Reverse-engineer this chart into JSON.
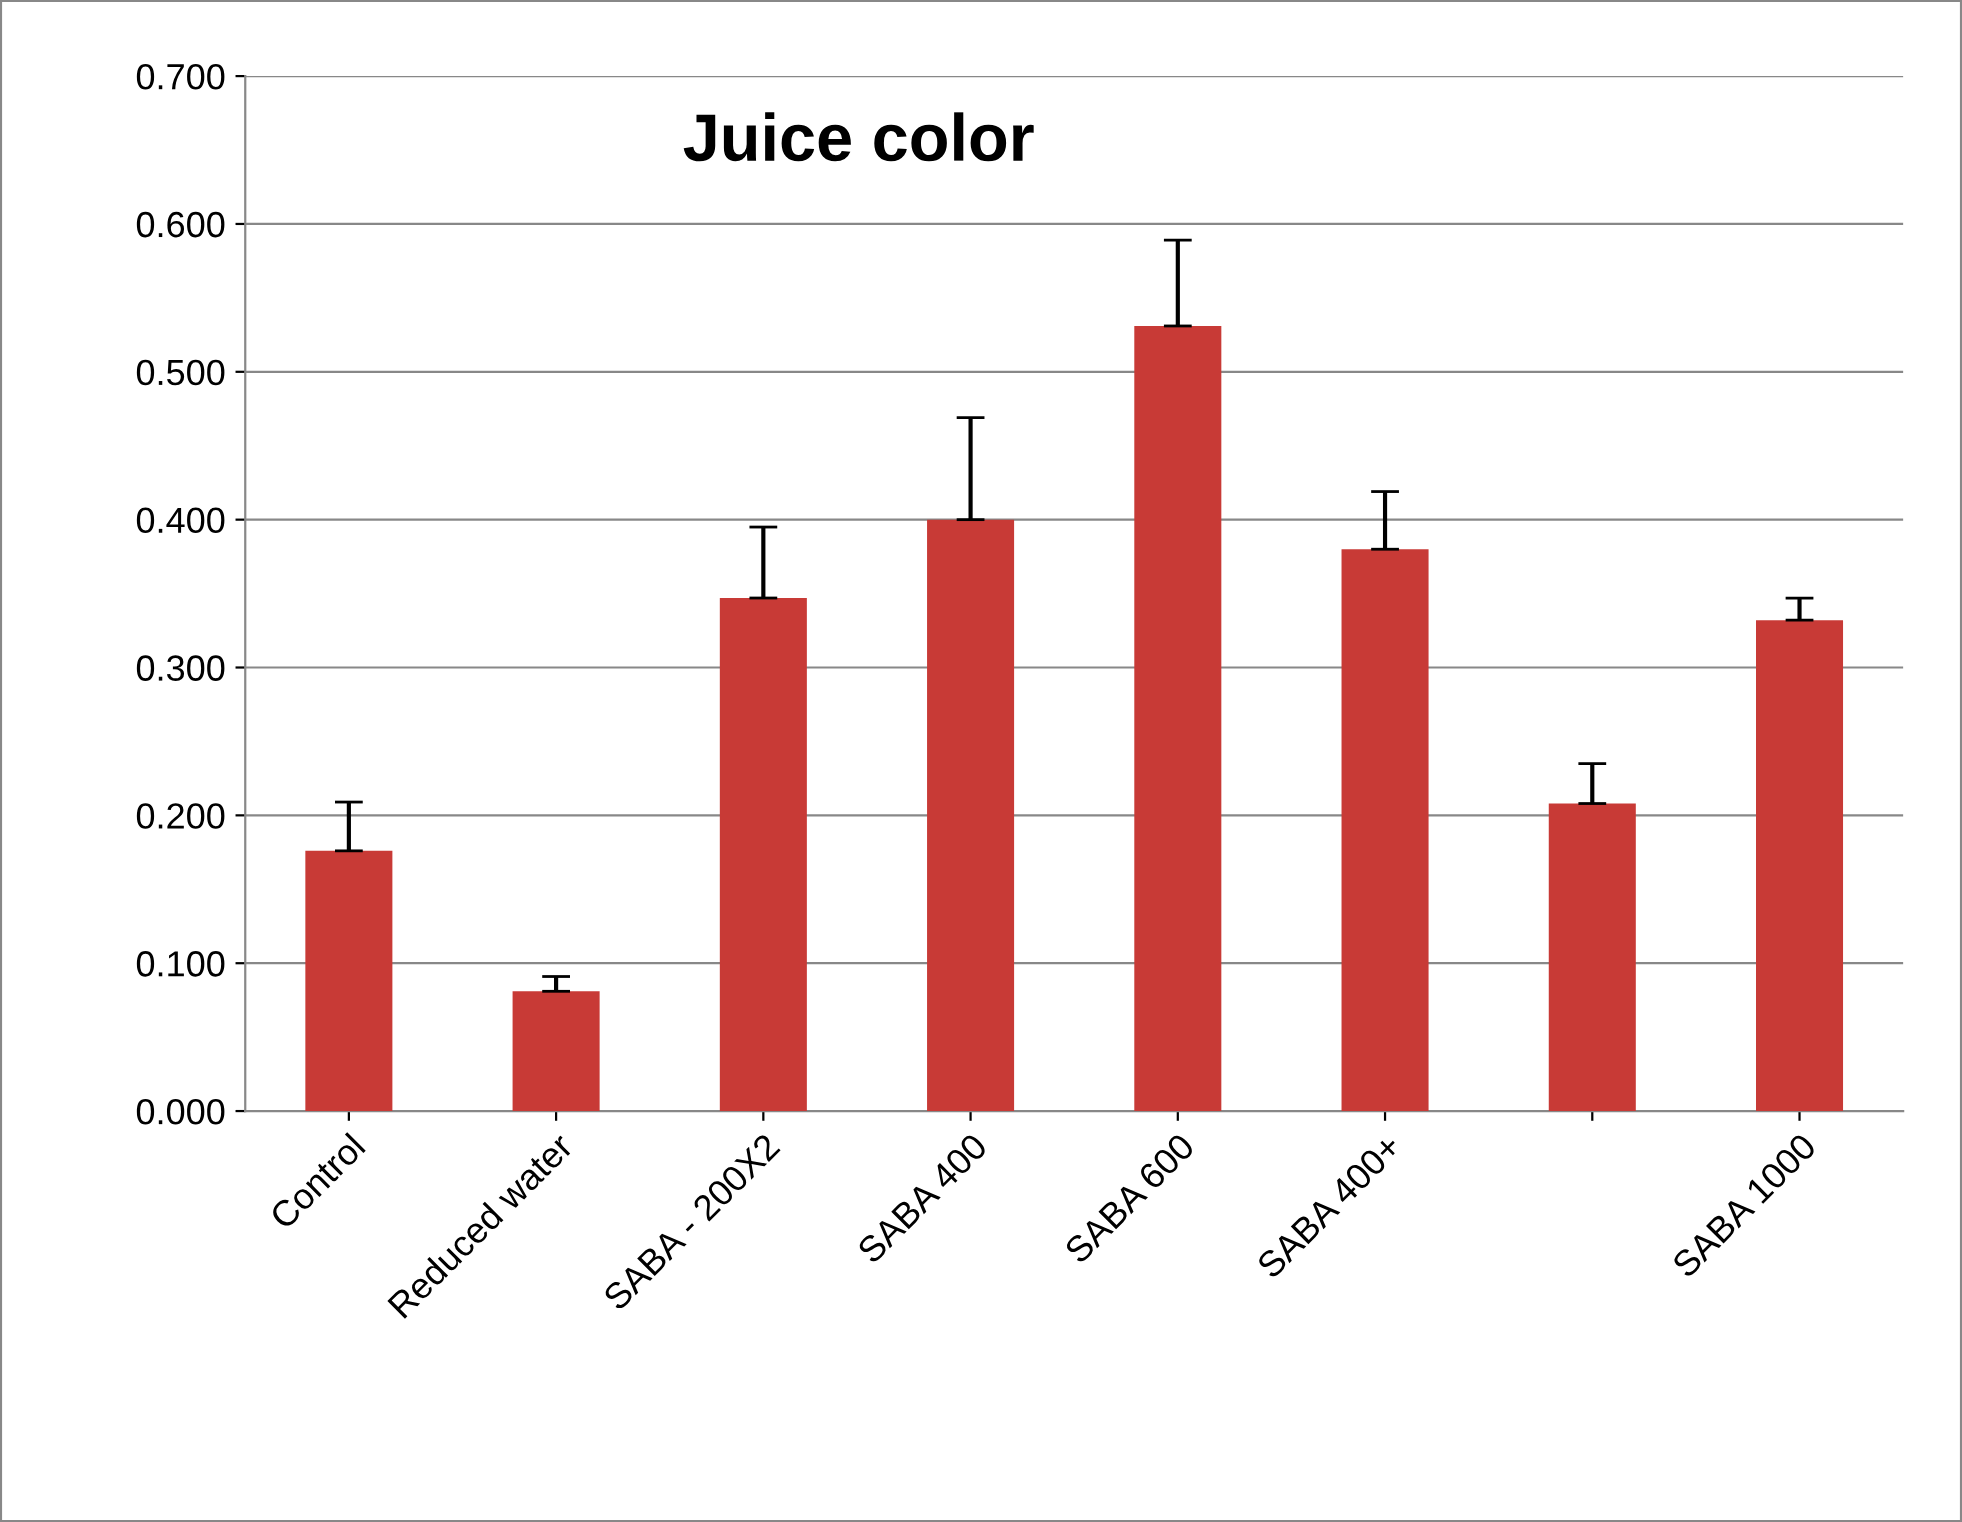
{
  "chart_data": {
    "type": "bar",
    "title": "Juice color",
    "categories": [
      "Control",
      "Reduced water",
      "SABA - 200X2",
      "SABA 400",
      "SABA 600",
      "SABA 400+",
      null,
      "SABA 1000"
    ],
    "values": [
      0.176,
      0.081,
      0.347,
      0.4,
      0.531,
      0.38,
      0.208,
      0.332
    ],
    "errors": [
      [
        0.176,
        0.209
      ],
      [
        0.081,
        0.091
      ],
      [
        0.347,
        0.395
      ],
      [
        0.4,
        0.469
      ],
      [
        0.531,
        0.589
      ],
      [
        0.38,
        0.419
      ],
      [
        0.208,
        0.235
      ],
      [
        0.332,
        0.347
      ]
    ],
    "color": "#c83a36",
    "ylim": [
      0,
      0.7
    ],
    "yticks": [
      {
        "value": 0,
        "label": "0.000"
      },
      {
        "value": 0.1,
        "label": "0.100"
      },
      {
        "value": 0.2,
        "label": "0.200"
      },
      {
        "value": 0.3,
        "label": "0.300"
      },
      {
        "value": 0.4,
        "label": "0.400"
      },
      {
        "value": 0.5,
        "label": "0.500"
      },
      {
        "value": 0.6,
        "label": "0.600"
      },
      {
        "value": 0.7,
        "label": "0.700"
      }
    ],
    "grid": "y",
    "legend": false
  }
}
